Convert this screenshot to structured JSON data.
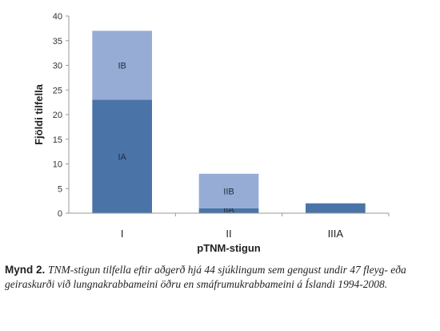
{
  "chart_data": {
    "type": "bar",
    "stacked": true,
    "categories": [
      "I",
      "II",
      "IIIA"
    ],
    "series": [
      {
        "name": "",
        "segment_labels": [
          "IA",
          "IIA",
          ""
        ],
        "values": [
          23,
          1,
          2
        ],
        "color": "#4a74a8"
      },
      {
        "name": "",
        "segment_labels": [
          "IB",
          "IIB",
          ""
        ],
        "values": [
          14,
          7,
          0
        ],
        "color": "#96acd5"
      }
    ],
    "xlabel": "pTNM-stigun",
    "ylabel": "Fjöldi tilfella",
    "ylim": [
      0,
      40
    ],
    "yticks": [
      0,
      5,
      10,
      15,
      20,
      25,
      30,
      35,
      40
    ],
    "grid": false,
    "legend": "none"
  },
  "caption": {
    "lead": "Mynd 2.",
    "text": "TNM-stigun tilfella eftir aðgerð hjá 44 sjúklingum sem gengust undir 47 fleyg- eða geiraskurði við lungnakrabbameini öðru en smáfrumukrabbameini á Íslandi 1994-2008."
  }
}
